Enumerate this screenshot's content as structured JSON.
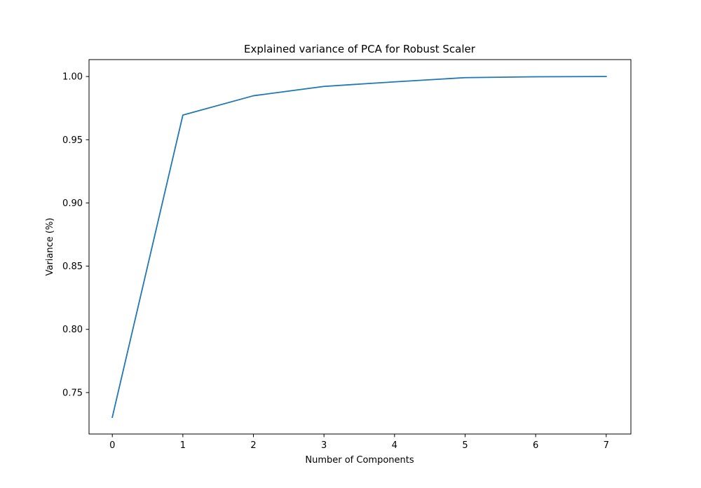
{
  "chart_data": {
    "type": "line",
    "title": "Explained variance of PCA for Robust Scaler",
    "xlabel": "Number of Components",
    "ylabel": "Variance (%)",
    "x": [
      0,
      1,
      2,
      3,
      4,
      5,
      6,
      7
    ],
    "series": [
      {
        "values": [
          0.7305,
          0.9695,
          0.9848,
          0.9922,
          0.9958,
          0.9991,
          0.9998,
          1.0
        ]
      }
    ],
    "xlim": [
      -0.33,
      7.35
    ],
    "ylim": [
      0.7172,
      1.0134
    ],
    "xticks": [
      0,
      1,
      2,
      3,
      4,
      5,
      6,
      7
    ],
    "xtick_labels": [
      "0",
      "1",
      "2",
      "3",
      "4",
      "5",
      "6",
      "7"
    ],
    "yticks": [
      0.75,
      0.8,
      0.85,
      0.9,
      0.95,
      1.0
    ],
    "ytick_labels": [
      "0.75",
      "0.80",
      "0.85",
      "0.90",
      "0.95",
      "1.00"
    ],
    "grid": false,
    "legend": "none",
    "line_color": "#1f77b4"
  }
}
